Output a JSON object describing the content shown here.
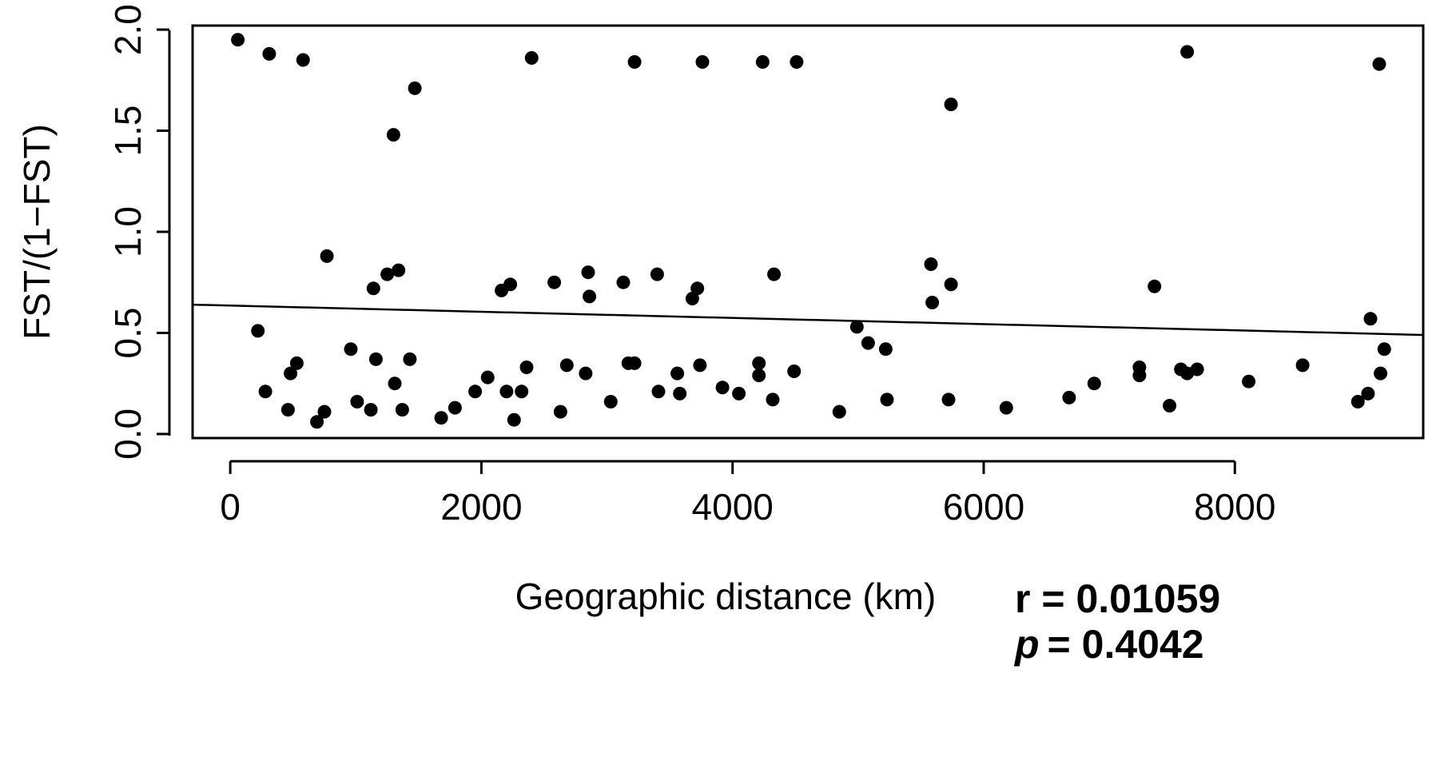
{
  "chart_data": {
    "type": "scatter",
    "title": "",
    "xlabel": "Geographic distance (km)",
    "ylabel": "FST/(1−FST)",
    "xlim": [
      -300,
      9500
    ],
    "ylim": [
      -0.02,
      2.02
    ],
    "x_ticks": [
      0,
      2000,
      4000,
      6000,
      8000
    ],
    "x_tick_labels": [
      "0",
      "2000",
      "4000",
      "6000",
      "8000"
    ],
    "y_ticks": [
      0.0,
      0.5,
      1.0,
      1.5,
      2.0
    ],
    "y_tick_labels": [
      "0.0",
      "0.5",
      "1.0",
      "1.5",
      "2.0"
    ],
    "grid": false,
    "point_color": "#000000",
    "regression_line": {
      "x": [
        -300,
        9500
      ],
      "y": [
        0.64,
        0.49
      ]
    },
    "stats": {
      "r_text": "r = 0.01059",
      "p_symbol": "p",
      "p_value_text": "=  0.4042"
    },
    "points": [
      {
        "x": 60,
        "y": 1.95
      },
      {
        "x": 310,
        "y": 1.88
      },
      {
        "x": 580,
        "y": 1.85
      },
      {
        "x": 1470,
        "y": 1.71
      },
      {
        "x": 1300,
        "y": 1.48
      },
      {
        "x": 2400,
        "y": 1.86
      },
      {
        "x": 3220,
        "y": 1.84
      },
      {
        "x": 3760,
        "y": 1.84
      },
      {
        "x": 4240,
        "y": 1.84
      },
      {
        "x": 4510,
        "y": 1.84
      },
      {
        "x": 5740,
        "y": 1.63
      },
      {
        "x": 7620,
        "y": 1.89
      },
      {
        "x": 9150,
        "y": 1.83
      },
      {
        "x": 770,
        "y": 0.88
      },
      {
        "x": 1140,
        "y": 0.72
      },
      {
        "x": 1250,
        "y": 0.79
      },
      {
        "x": 1340,
        "y": 0.81
      },
      {
        "x": 2160,
        "y": 0.71
      },
      {
        "x": 2230,
        "y": 0.74
      },
      {
        "x": 2580,
        "y": 0.75
      },
      {
        "x": 2850,
        "y": 0.8
      },
      {
        "x": 2860,
        "y": 0.68
      },
      {
        "x": 3130,
        "y": 0.75
      },
      {
        "x": 3400,
        "y": 0.79
      },
      {
        "x": 3680,
        "y": 0.67
      },
      {
        "x": 3720,
        "y": 0.72
      },
      {
        "x": 4330,
        "y": 0.79
      },
      {
        "x": 5580,
        "y": 0.84
      },
      {
        "x": 5590,
        "y": 0.65
      },
      {
        "x": 5740,
        "y": 0.74
      },
      {
        "x": 7360,
        "y": 0.73
      },
      {
        "x": 9080,
        "y": 0.57
      },
      {
        "x": 4990,
        "y": 0.53
      },
      {
        "x": 220,
        "y": 0.51
      },
      {
        "x": 280,
        "y": 0.21
      },
      {
        "x": 460,
        "y": 0.12
      },
      {
        "x": 480,
        "y": 0.3
      },
      {
        "x": 530,
        "y": 0.35
      },
      {
        "x": 690,
        "y": 0.06
      },
      {
        "x": 750,
        "y": 0.11
      },
      {
        "x": 960,
        "y": 0.42
      },
      {
        "x": 1010,
        "y": 0.16
      },
      {
        "x": 1120,
        "y": 0.12
      },
      {
        "x": 1160,
        "y": 0.37
      },
      {
        "x": 1310,
        "y": 0.25
      },
      {
        "x": 1370,
        "y": 0.12
      },
      {
        "x": 1430,
        "y": 0.37
      },
      {
        "x": 1680,
        "y": 0.08
      },
      {
        "x": 1790,
        "y": 0.13
      },
      {
        "x": 1950,
        "y": 0.21
      },
      {
        "x": 2050,
        "y": 0.28
      },
      {
        "x": 2200,
        "y": 0.21
      },
      {
        "x": 2260,
        "y": 0.07
      },
      {
        "x": 2320,
        "y": 0.21
      },
      {
        "x": 2360,
        "y": 0.33
      },
      {
        "x": 2630,
        "y": 0.11
      },
      {
        "x": 2680,
        "y": 0.34
      },
      {
        "x": 2830,
        "y": 0.3
      },
      {
        "x": 3030,
        "y": 0.16
      },
      {
        "x": 3170,
        "y": 0.35
      },
      {
        "x": 3220,
        "y": 0.35
      },
      {
        "x": 3410,
        "y": 0.21
      },
      {
        "x": 3560,
        "y": 0.3
      },
      {
        "x": 3580,
        "y": 0.2
      },
      {
        "x": 3740,
        "y": 0.34
      },
      {
        "x": 3920,
        "y": 0.23
      },
      {
        "x": 4050,
        "y": 0.2
      },
      {
        "x": 4210,
        "y": 0.35
      },
      {
        "x": 4210,
        "y": 0.29
      },
      {
        "x": 4320,
        "y": 0.17
      },
      {
        "x": 4490,
        "y": 0.31
      },
      {
        "x": 4850,
        "y": 0.11
      },
      {
        "x": 5080,
        "y": 0.45
      },
      {
        "x": 5220,
        "y": 0.42
      },
      {
        "x": 5230,
        "y": 0.17
      },
      {
        "x": 5720,
        "y": 0.17
      },
      {
        "x": 6180,
        "y": 0.13
      },
      {
        "x": 6680,
        "y": 0.18
      },
      {
        "x": 6880,
        "y": 0.25
      },
      {
        "x": 7240,
        "y": 0.33
      },
      {
        "x": 7240,
        "y": 0.29
      },
      {
        "x": 7480,
        "y": 0.14
      },
      {
        "x": 7570,
        "y": 0.32
      },
      {
        "x": 7620,
        "y": 0.3
      },
      {
        "x": 7700,
        "y": 0.32
      },
      {
        "x": 8110,
        "y": 0.26
      },
      {
        "x": 8540,
        "y": 0.34
      },
      {
        "x": 8980,
        "y": 0.16
      },
      {
        "x": 9060,
        "y": 0.2
      },
      {
        "x": 9160,
        "y": 0.3
      },
      {
        "x": 9190,
        "y": 0.42
      }
    ]
  }
}
